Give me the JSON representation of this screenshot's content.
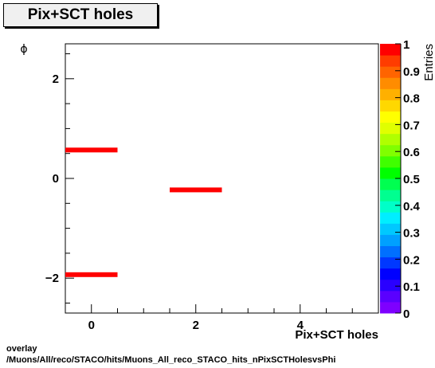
{
  "title": "Pix+SCT holes",
  "footer": {
    "line1": "overlay",
    "line2": "/Muons/All/reco/STACO/hits/Muons_All_reco_STACO_hits_nPixSCTHolesvsPhi"
  },
  "chart_data": {
    "type": "heatmap",
    "xlabel": "Pix+SCT holes",
    "ylabel": "ϕ",
    "zlabel": "Entries",
    "xlim": [
      -0.5,
      5.5
    ],
    "ylim": [
      -2.7,
      2.7
    ],
    "zlim": [
      0,
      1
    ],
    "x_ticks": [
      0,
      2,
      4
    ],
    "y_ticks": [
      -2,
      0,
      2
    ],
    "z_ticks": [
      "0",
      "0.1",
      "0.2",
      "0.3",
      "0.4",
      "0.5",
      "0.6",
      "0.7",
      "0.8",
      "0.9",
      "1"
    ],
    "cells": [
      {
        "x": 0,
        "y": 0.57,
        "value": 1
      },
      {
        "x": 0,
        "y": -1.93,
        "value": 1
      },
      {
        "x": 2,
        "y": -0.23,
        "value": 1
      }
    ],
    "palette": [
      "#7e00ff",
      "#5a00ff",
      "#2a00ff",
      "#0000ff",
      "#0038ff",
      "#0070ff",
      "#00a0ff",
      "#00c8ff",
      "#00eeff",
      "#00ffc8",
      "#00ff90",
      "#00ff50",
      "#00ff00",
      "#40ff00",
      "#80ff00",
      "#b0ff00",
      "#e0ff00",
      "#ffff00",
      "#ffd800",
      "#ffb000",
      "#ff8c00",
      "#ff6400",
      "#ff3c00",
      "#ff0000"
    ]
  }
}
